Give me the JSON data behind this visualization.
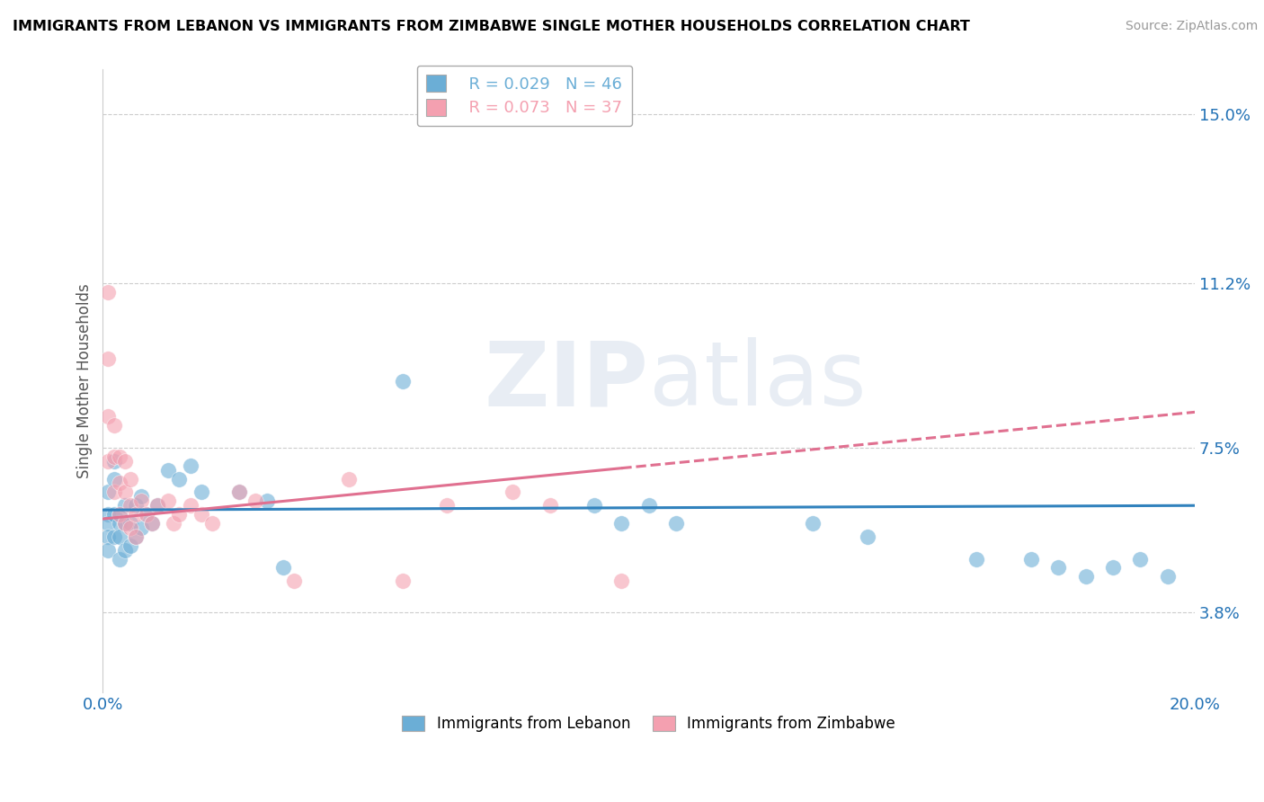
{
  "title": "IMMIGRANTS FROM LEBANON VS IMMIGRANTS FROM ZIMBABWE SINGLE MOTHER HOUSEHOLDS CORRELATION CHART",
  "source": "Source: ZipAtlas.com",
  "ylabel": "Single Mother Households",
  "xlim": [
    0.0,
    0.2
  ],
  "ylim": [
    0.02,
    0.16
  ],
  "yticks": [
    0.038,
    0.075,
    0.112,
    0.15
  ],
  "ytick_labels": [
    "3.8%",
    "7.5%",
    "11.2%",
    "15.0%"
  ],
  "xticks": [
    0.0,
    0.05,
    0.1,
    0.15,
    0.2
  ],
  "xtick_labels": [
    "0.0%",
    "",
    "",
    "",
    "20.0%"
  ],
  "watermark": "ZIPatlas",
  "legend1_label": "Immigrants from Lebanon",
  "legend2_label": "Immigrants from Zimbabwe",
  "R_lebanon": 0.029,
  "N_lebanon": 46,
  "R_zimbabwe": 0.073,
  "N_zimbabwe": 37,
  "color_lebanon": "#6baed6",
  "color_zimbabwe": "#f4a0b0",
  "trendline_lebanon": "#3182bd",
  "trendline_zimbabwe": "#e07090",
  "lebanon_x": [
    0.001,
    0.001,
    0.001,
    0.001,
    0.001,
    0.002,
    0.002,
    0.002,
    0.002,
    0.003,
    0.003,
    0.003,
    0.003,
    0.004,
    0.004,
    0.004,
    0.005,
    0.005,
    0.006,
    0.006,
    0.007,
    0.007,
    0.008,
    0.009,
    0.01,
    0.012,
    0.014,
    0.016,
    0.018,
    0.025,
    0.03,
    0.033,
    0.055,
    0.09,
    0.095,
    0.1,
    0.105,
    0.13,
    0.14,
    0.16,
    0.17,
    0.175,
    0.18,
    0.185,
    0.19,
    0.195
  ],
  "lebanon_y": [
    0.06,
    0.065,
    0.058,
    0.055,
    0.052,
    0.072,
    0.068,
    0.06,
    0.055,
    0.06,
    0.058,
    0.055,
    0.05,
    0.062,
    0.058,
    0.052,
    0.058,
    0.053,
    0.062,
    0.055,
    0.064,
    0.057,
    0.06,
    0.058,
    0.062,
    0.07,
    0.068,
    0.071,
    0.065,
    0.065,
    0.063,
    0.048,
    0.09,
    0.062,
    0.058,
    0.062,
    0.058,
    0.058,
    0.055,
    0.05,
    0.05,
    0.048,
    0.046,
    0.048,
    0.05,
    0.046
  ],
  "zimbabwe_x": [
    0.001,
    0.001,
    0.001,
    0.001,
    0.002,
    0.002,
    0.002,
    0.003,
    0.003,
    0.003,
    0.004,
    0.004,
    0.004,
    0.005,
    0.005,
    0.005,
    0.006,
    0.006,
    0.007,
    0.008,
    0.009,
    0.01,
    0.012,
    0.013,
    0.014,
    0.016,
    0.018,
    0.02,
    0.025,
    0.028,
    0.035,
    0.045,
    0.055,
    0.063,
    0.075,
    0.082,
    0.095
  ],
  "zimbabwe_y": [
    0.11,
    0.095,
    0.082,
    0.072,
    0.08,
    0.073,
    0.065,
    0.073,
    0.067,
    0.06,
    0.072,
    0.065,
    0.058,
    0.068,
    0.062,
    0.057,
    0.06,
    0.055,
    0.063,
    0.06,
    0.058,
    0.062,
    0.063,
    0.058,
    0.06,
    0.062,
    0.06,
    0.058,
    0.065,
    0.063,
    0.045,
    0.068,
    0.045,
    0.062,
    0.065,
    0.062,
    0.045
  ]
}
